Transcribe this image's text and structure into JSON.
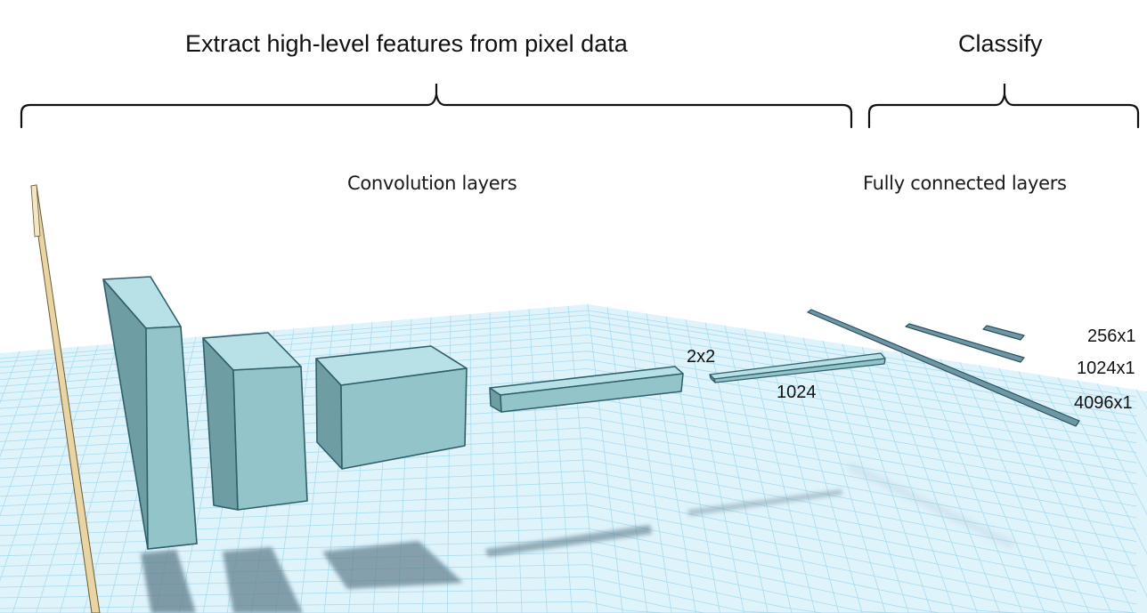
{
  "headings": {
    "extract": "Extract high-level features from pixel data",
    "classify": "Classify"
  },
  "groups": {
    "convolution": "Convolution layers",
    "fully_connected": "Fully connected layers"
  },
  "labels": {
    "pool": "2x2",
    "flatten": "1024",
    "fc_256": "256x1",
    "fc_1024": "1024x1",
    "fc_4096": "4096x1"
  },
  "colors": {
    "grid_floor": "#dff3fb",
    "grid_line": "#9fd8ee",
    "block_front": "#8fc2c8",
    "block_top": "#b8e2e6",
    "block_side": "#6f9ea4",
    "block_edge": "#2f5f6a",
    "input_plate": "#e6cf9c",
    "fc_bar": "#6a95a3",
    "shadow": "#5e7a8a"
  }
}
